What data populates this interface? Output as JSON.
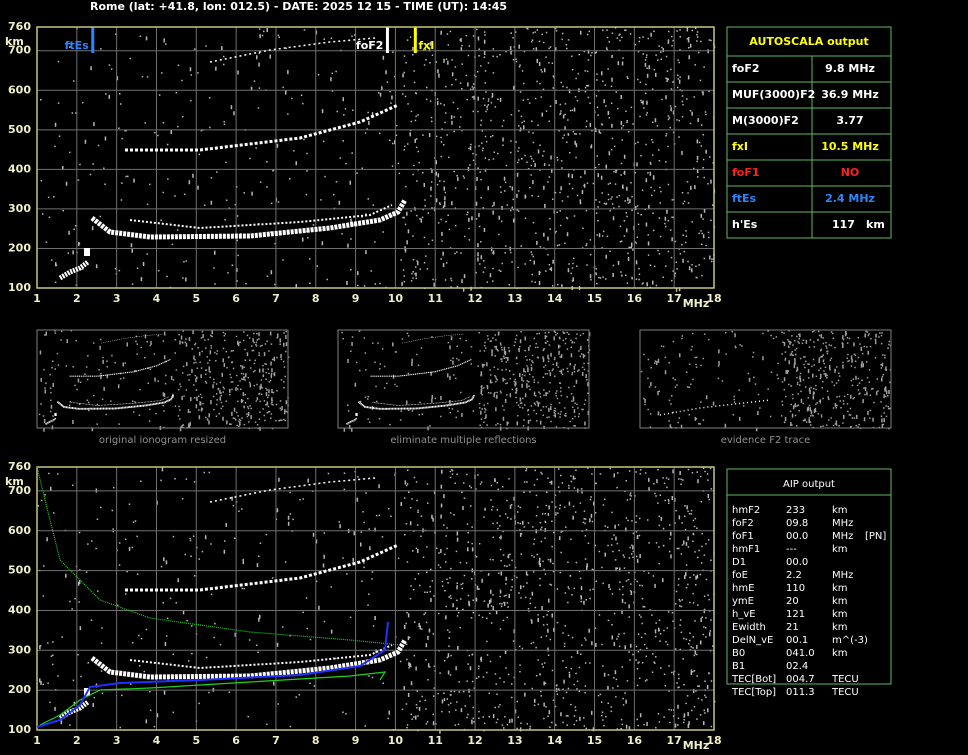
{
  "header": {
    "title": "Rome (lat: +41.8, lon: 012.5) - DATE: 2025 12 15 - TIME (UT): 14:45"
  },
  "ionograms": [
    {
      "y_unit": "km",
      "x_unit": "MHz",
      "yticks": [
        100,
        200,
        300,
        400,
        500,
        600,
        700,
        760
      ],
      "xticks": [
        1,
        2,
        3,
        4,
        5,
        6,
        7,
        8,
        9,
        10,
        11,
        12,
        13,
        14,
        15,
        16,
        17,
        18
      ],
      "markers": [
        {
          "label": "ftEs",
          "value": 2.4,
          "color": "#2b86ff"
        },
        {
          "label": "foF2",
          "value": 9.8,
          "color": "#ffffff"
        },
        {
          "label": "fxI",
          "value": 10.5,
          "color": "#ffff00"
        }
      ]
    },
    {
      "y_unit": "km",
      "x_unit": "MHz",
      "yticks": [
        100,
        200,
        300,
        400,
        500,
        600,
        700,
        760
      ],
      "xticks": [
        1,
        2,
        3,
        4,
        5,
        6,
        7,
        8,
        9,
        10,
        11,
        12,
        13,
        14,
        15,
        16,
        17,
        18
      ]
    }
  ],
  "thumbnails": [
    "original ionogram resized",
    "eliminate multiple reflections",
    "evidence F2 trace"
  ],
  "autoscala": {
    "title": "AUTOSCALA output",
    "rows": [
      {
        "label": "foF2",
        "value": "9.8 MHz",
        "color": "#ffffff"
      },
      {
        "label": "MUF(3000)F2",
        "value": "36.9 MHz",
        "color": "#ffffff"
      },
      {
        "label": "M(3000)F2",
        "value": "3.77",
        "color": "#ffffff"
      },
      {
        "label": "fxI",
        "value": "10.5 MHz",
        "color": "#ffff00"
      },
      {
        "label": "foF1",
        "value": "NO",
        "color": "#ff2020"
      },
      {
        "label": "ftEs",
        "value": "2.4 MHz",
        "color": "#2b86ff"
      },
      {
        "label": "h'Es",
        "value": "117",
        "unit": "km",
        "color": "#ffffff"
      }
    ]
  },
  "aip": {
    "title": "AIP output",
    "rows": [
      [
        "hmF2",
        "233",
        "km"
      ],
      [
        "foF2",
        "09.8",
        "MHz"
      ],
      [
        "foF1",
        "00.0",
        "MHz",
        "[PN]"
      ],
      [
        "hmF1",
        "---",
        "km"
      ],
      [
        "D1",
        "00.0"
      ],
      [
        "foE",
        "2.2",
        "MHz"
      ],
      [
        "hmE",
        "110",
        "km"
      ],
      [
        "ymE",
        "20",
        "km"
      ],
      [
        "h_vE",
        "121",
        "km"
      ],
      [
        "Ewidth",
        "21",
        "km"
      ],
      [
        "DelN_vE",
        "00.1",
        "m^(-3)"
      ],
      [
        "B0",
        "041.0",
        "km"
      ],
      [
        "B1",
        "02.4"
      ],
      [
        "TEC[Bot]",
        "004.7",
        "TECU"
      ],
      [
        "TEC[Top]",
        "011.3",
        "TECU"
      ]
    ]
  }
}
